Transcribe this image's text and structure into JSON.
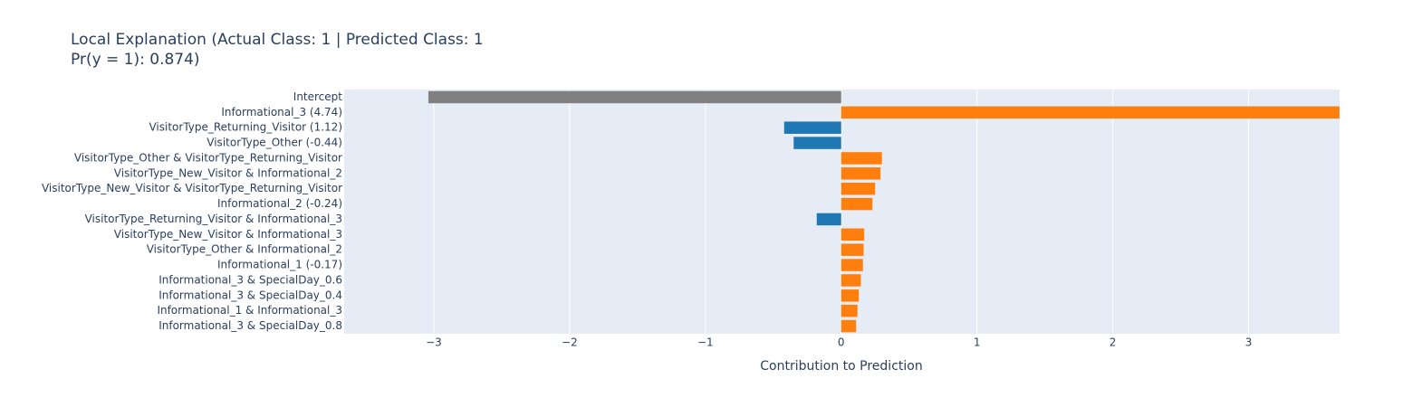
{
  "chart_data": {
    "type": "barh",
    "title": [
      "Local Explanation (Actual Class: 1 | Predicted Class: 1",
      "Pr(y = 1): 0.874)"
    ],
    "xlabel": "Contribution to Prediction",
    "categories": [
      "Intercept",
      "Informational_3 (4.74)",
      "VisitorType_Returning_Visitor (1.12)",
      "VisitorType_Other (-0.44)",
      "VisitorType_Other & VisitorType_Returning_Visitor",
      "VisitorType_New_Visitor & Informational_2",
      "VisitorType_New_Visitor & VisitorType_Returning_Visitor",
      "Informational_2 (-0.24)",
      "VisitorType_Returning_Visitor & Informational_3",
      "VisitorType_New_Visitor & Informational_3",
      "VisitorType_Other & Informational_2",
      "Informational_1 (-0.17)",
      "Informational_3 & SpecialDay_0.6",
      "Informational_3 & SpecialDay_0.4",
      "Informational_1 & Informational_3",
      "Informational_3 & SpecialDay_0.8"
    ],
    "values": [
      -3.04,
      3.75,
      -0.42,
      -0.35,
      0.3,
      0.29,
      0.25,
      0.23,
      -0.18,
      0.17,
      0.165,
      0.16,
      0.145,
      0.13,
      0.12,
      0.11
    ],
    "colors": [
      "#808080",
      "#ff7f0e",
      "#1f77b4",
      "#1f77b4",
      "#ff7f0e",
      "#ff7f0e",
      "#ff7f0e",
      "#ff7f0e",
      "#1f77b4",
      "#ff7f0e",
      "#ff7f0e",
      "#ff7f0e",
      "#ff7f0e",
      "#ff7f0e",
      "#ff7f0e",
      "#ff7f0e"
    ],
    "xlim": [
      -3.66,
      3.67
    ],
    "xticks": [
      {
        "value": -3,
        "label": "−3"
      },
      {
        "value": -2,
        "label": "−2"
      },
      {
        "value": -1,
        "label": "−1"
      },
      0,
      1,
      2,
      3
    ],
    "grid": true
  }
}
